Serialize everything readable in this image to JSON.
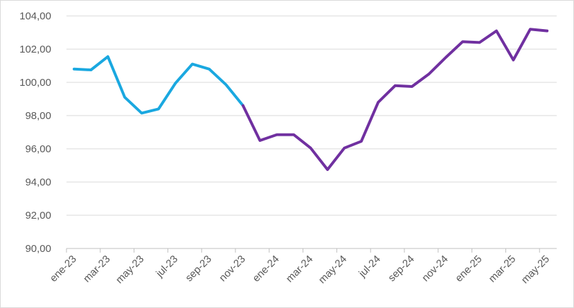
{
  "chart_data": {
    "type": "line",
    "title": "",
    "xlabel": "",
    "ylabel": "",
    "ylim": [
      90,
      104
    ],
    "y_ticks": [
      "90,00",
      "92,00",
      "94,00",
      "96,00",
      "98,00",
      "100,00",
      "102,00",
      "104,00"
    ],
    "x_tick_labels": [
      "ene-23",
      "mar-23",
      "may-23",
      "jul-23",
      "sep-23",
      "nov-23",
      "ene-24",
      "mar-24",
      "may-24",
      "jul-24",
      "sep-24",
      "nov-24",
      "ene-25",
      "mar-25",
      "may-25"
    ],
    "grid": "horizontal",
    "legend": "none",
    "colors": {
      "series_1": "#1aa8e0",
      "series_2": "#7030a0",
      "grid": "#d9d9d9",
      "axis": "#bfbfbf",
      "text": "#595959"
    },
    "series": [
      {
        "color": "#1aa8e0",
        "x": [
          "ene-23",
          "feb-23",
          "mar-23",
          "abr-23",
          "may-23",
          "jun-23",
          "jul-23",
          "ago-23",
          "sep-23",
          "oct-23",
          "nov-23"
        ],
        "values": [
          100.8,
          100.75,
          101.55,
          99.1,
          98.15,
          98.4,
          99.95,
          101.1,
          100.8,
          99.85,
          98.6
        ]
      },
      {
        "color": "#7030a0",
        "x": [
          "nov-23",
          "dic-23",
          "ene-24",
          "feb-24",
          "mar-24",
          "abr-24",
          "may-24",
          "jun-24",
          "jul-24",
          "ago-24",
          "sep-24",
          "oct-24",
          "nov-24",
          "dic-24",
          "ene-25",
          "feb-25",
          "mar-25",
          "abr-25",
          "may-25"
        ],
        "values": [
          98.6,
          96.5,
          96.85,
          96.85,
          96.05,
          94.75,
          96.05,
          96.45,
          98.8,
          99.8,
          99.75,
          100.5,
          101.5,
          102.45,
          102.4,
          103.1,
          101.35,
          103.2,
          103.1
        ]
      }
    ]
  }
}
